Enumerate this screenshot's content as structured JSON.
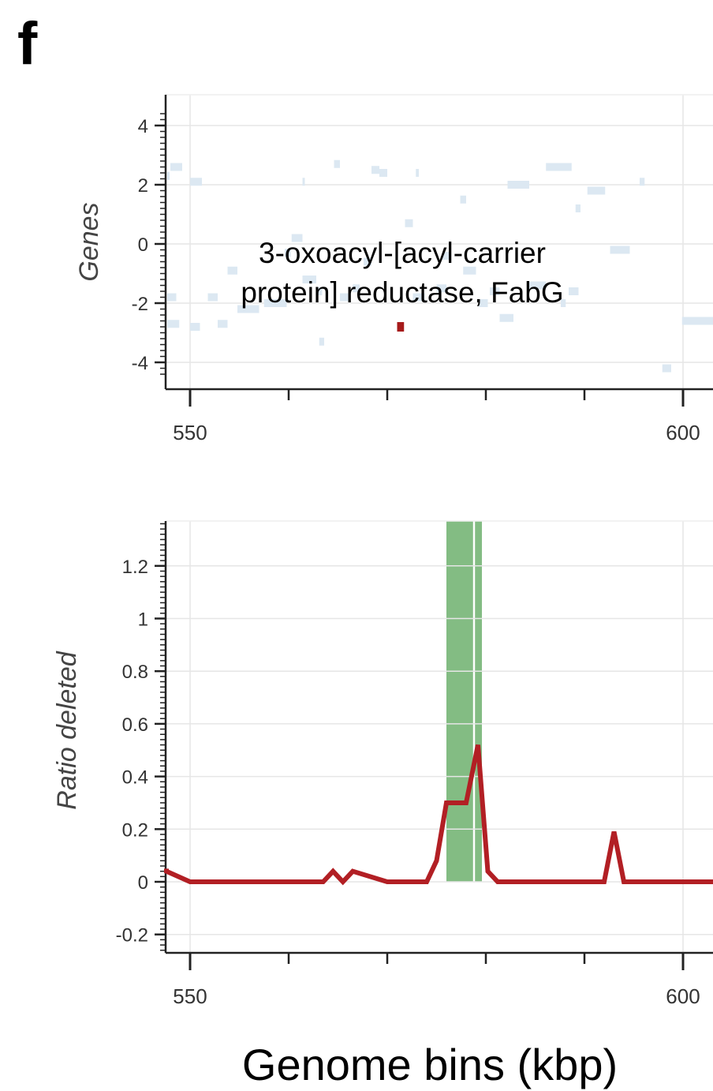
{
  "panel_letter": "f",
  "chart_data": [
    {
      "type": "scatter",
      "ylabel": "Genes",
      "xlabel": "",
      "xlim": [
        545,
        605
      ],
      "ylim": [
        -4.5,
        4.5
      ],
      "x_ticks": [
        "550",
        "600"
      ],
      "y_ticks": [
        "4",
        "2",
        "0",
        "-2",
        "-4"
      ],
      "grid": true,
      "annotation": [
        "3-oxoacyl-[acyl-carrier",
        "protein] reductase, FabG"
      ],
      "highlight_color": "#a61b1b",
      "background_gene_color": "#dce8f2",
      "highlight_gene": {
        "x_start": 571.0,
        "x_end": 571.7,
        "y": -2.8
      },
      "background_genes": [
        {
          "x_start": 546.7,
          "x_end": 547.9,
          "y": 2.3
        },
        {
          "x_start": 548.0,
          "x_end": 549.2,
          "y": 2.6
        },
        {
          "x_start": 547.2,
          "x_end": 548.6,
          "y": -1.8
        },
        {
          "x_start": 547.7,
          "x_end": 548.9,
          "y": -2.7
        },
        {
          "x_start": 550.0,
          "x_end": 551.2,
          "y": 2.1
        },
        {
          "x_start": 550.0,
          "x_end": 551.0,
          "y": -2.8
        },
        {
          "x_start": 551.8,
          "x_end": 552.8,
          "y": -1.8
        },
        {
          "x_start": 552.8,
          "x_end": 553.8,
          "y": -2.7
        },
        {
          "x_start": 553.8,
          "x_end": 554.8,
          "y": -0.9
        },
        {
          "x_start": 554.8,
          "x_end": 557.0,
          "y": -2.2
        },
        {
          "x_start": 557.5,
          "x_end": 559.8,
          "y": -2.0
        },
        {
          "x_start": 559.6,
          "x_end": 560.2,
          "y": -0.3
        },
        {
          "x_start": 560.3,
          "x_end": 561.4,
          "y": 0.2
        },
        {
          "x_start": 561.4,
          "x_end": 562.8,
          "y": -1.2
        },
        {
          "x_start": 561.4,
          "x_end": 561.6,
          "y": 2.1
        },
        {
          "x_start": 562.8,
          "x_end": 563.4,
          "y": -1.6
        },
        {
          "x_start": 563.1,
          "x_end": 563.6,
          "y": -3.3
        },
        {
          "x_start": 564.6,
          "x_end": 565.2,
          "y": 2.7
        },
        {
          "x_start": 565.2,
          "x_end": 566.2,
          "y": -1.8
        },
        {
          "x_start": 566.5,
          "x_end": 567.2,
          "y": -1.5
        },
        {
          "x_start": 567.6,
          "x_end": 568.4,
          "y": -0.6
        },
        {
          "x_start": 568.4,
          "x_end": 569.2,
          "y": 2.5
        },
        {
          "x_start": 569.2,
          "x_end": 570.0,
          "y": 2.4
        },
        {
          "x_start": 571.8,
          "x_end": 572.6,
          "y": 0.7
        },
        {
          "x_start": 572.6,
          "x_end": 573.8,
          "y": -1.8
        },
        {
          "x_start": 572.9,
          "x_end": 573.2,
          "y": 2.4
        },
        {
          "x_start": 575.0,
          "x_end": 576.0,
          "y": -1.5
        },
        {
          "x_start": 575.6,
          "x_end": 576.4,
          "y": -0.4
        },
        {
          "x_start": 577.4,
          "x_end": 578.0,
          "y": 1.5
        },
        {
          "x_start": 577.7,
          "x_end": 579.0,
          "y": -0.9
        },
        {
          "x_start": 579.3,
          "x_end": 580.2,
          "y": -2.0
        },
        {
          "x_start": 580.4,
          "x_end": 581.4,
          "y": -1.6
        },
        {
          "x_start": 581.4,
          "x_end": 582.8,
          "y": -2.5
        },
        {
          "x_start": 582.2,
          "x_end": 584.4,
          "y": 2.0
        },
        {
          "x_start": 584.4,
          "x_end": 586.1,
          "y": -1.4
        },
        {
          "x_start": 586.1,
          "x_end": 588.7,
          "y": 2.6
        },
        {
          "x_start": 587.6,
          "x_end": 588.1,
          "y": -2.0
        },
        {
          "x_start": 588.4,
          "x_end": 589.4,
          "y": -1.6
        },
        {
          "x_start": 589.1,
          "x_end": 589.6,
          "y": 1.2
        },
        {
          "x_start": 590.3,
          "x_end": 592.1,
          "y": 1.8
        },
        {
          "x_start": 592.6,
          "x_end": 594.6,
          "y": -0.2
        },
        {
          "x_start": 595.6,
          "x_end": 596.1,
          "y": 2.1
        },
        {
          "x_start": 597.9,
          "x_end": 598.8,
          "y": -4.2
        },
        {
          "x_start": 599.9,
          "x_end": 605.0,
          "y": -2.6
        }
      ]
    },
    {
      "type": "line",
      "ylabel": "Ratio deleted",
      "xlabel": "Genome bins (kbp)",
      "xlim": [
        545,
        605
      ],
      "ylim": [
        -0.27,
        1.37
      ],
      "x_ticks": [
        "550",
        "600"
      ],
      "y_ticks": [
        "1.2",
        "1",
        "0.8",
        "0.6",
        "0.4",
        "0.2",
        "0",
        "-0.2"
      ],
      "grid": true,
      "series": [
        {
          "color": "#b21f24",
          "x": [
            545.0,
            546.5,
            547.5,
            550.0,
            560.0,
            562.5,
            563.5,
            564.5,
            565.5,
            566.5,
            570.0,
            573.0,
            574.0,
            575.0,
            576.0,
            578.0,
            579.2,
            580.2,
            581.2,
            584.0,
            591.5,
            592.0,
            593.0,
            594.0,
            605.0
          ],
          "y": [
            0.05,
            0.04,
            0.04,
            0.0,
            0.0,
            0.0,
            0.0,
            0.04,
            0.0,
            0.04,
            0.0,
            0.0,
            0.0,
            0.08,
            0.3,
            0.3,
            0.52,
            0.04,
            0.0,
            0.0,
            0.0,
            0.0,
            0.19,
            0.0,
            0.0
          ]
        }
      ],
      "highlight_color": "#4f9f4f",
      "highlight_regions": [
        {
          "x_start": 576.0,
          "x_end": 578.7
        },
        {
          "x_start": 578.9,
          "x_end": 579.6
        }
      ]
    }
  ],
  "xlabel_text": "Genome bins (kbp)"
}
